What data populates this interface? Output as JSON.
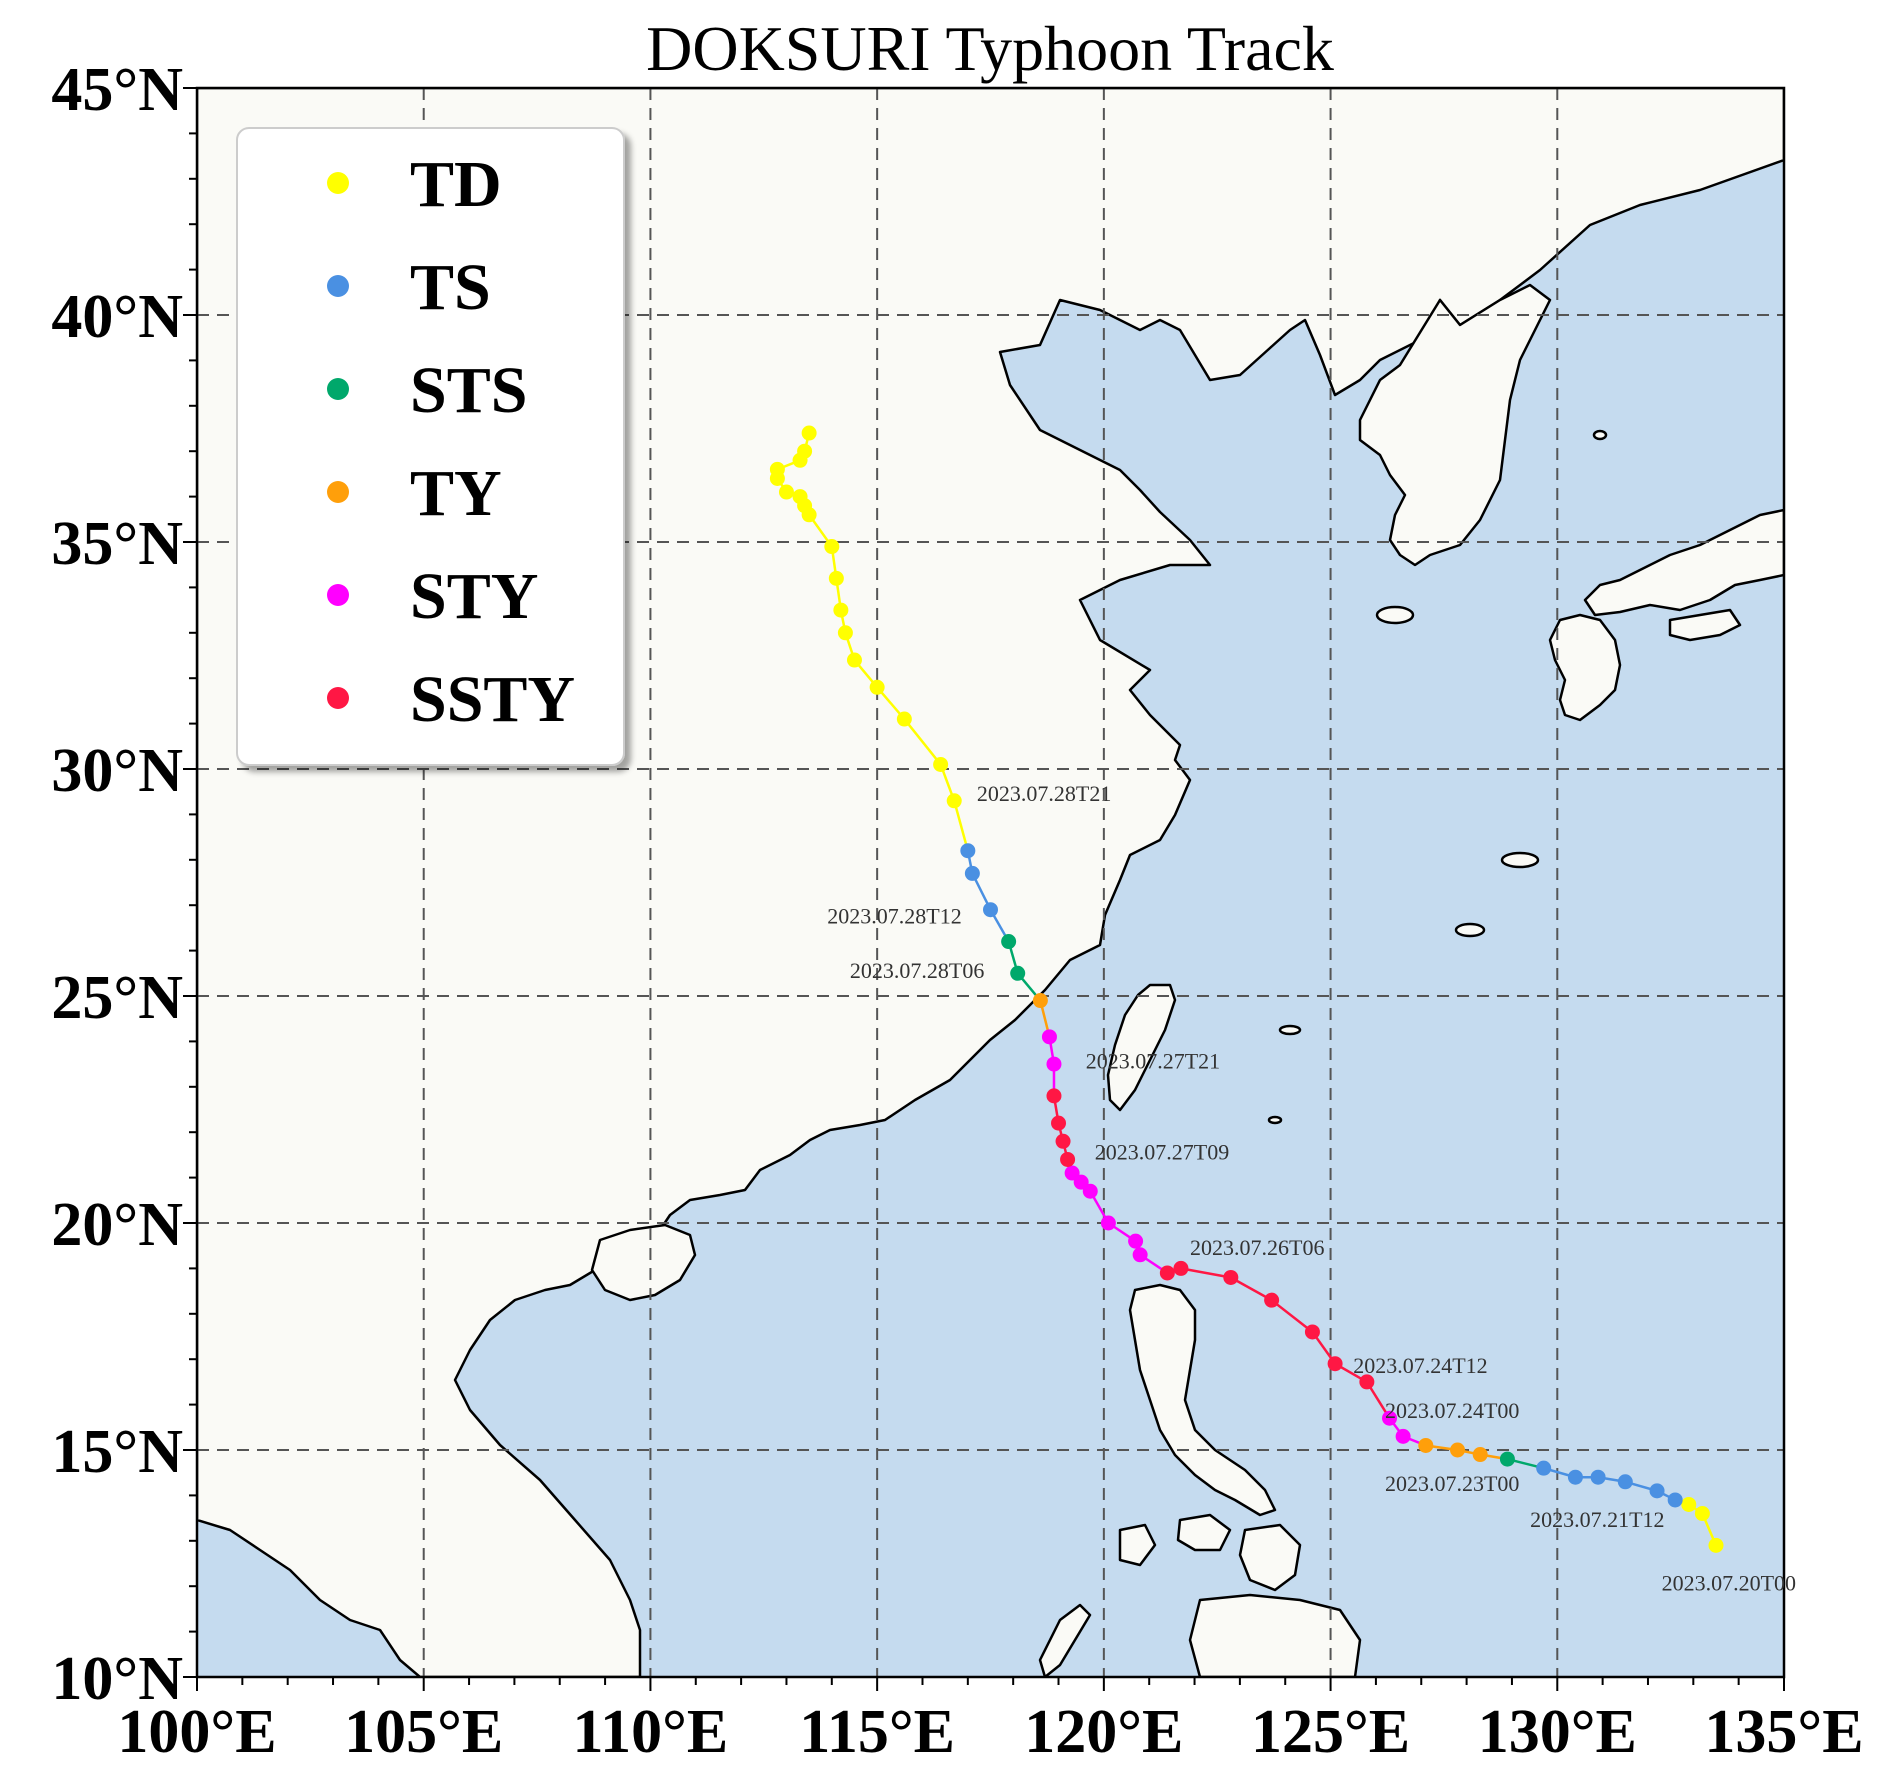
{
  "title": "DOKSURI Typhoon Track",
  "colors": {
    "ocean": "#c5dbef",
    "land": "#fafaf6",
    "TD": "#ffff00",
    "TS": "#4a90e2",
    "STS": "#00a86b",
    "TY": "#ff9f0a",
    "STY": "#ff00ff",
    "SSTY": "#ff1744"
  },
  "legend": [
    {
      "key": "TD",
      "label": "TD"
    },
    {
      "key": "TS",
      "label": "TS"
    },
    {
      "key": "STS",
      "label": "STS"
    },
    {
      "key": "TY",
      "label": "TY"
    },
    {
      "key": "STY",
      "label": "STY"
    },
    {
      "key": "SSTY",
      "label": "SSTY"
    }
  ],
  "axes": {
    "lon_range": [
      100,
      135
    ],
    "lat_range": [
      10,
      45
    ],
    "lon_ticks": [
      {
        "value": 100,
        "label": "100°E"
      },
      {
        "value": 105,
        "label": "105°E"
      },
      {
        "value": 110,
        "label": "110°E"
      },
      {
        "value": 115,
        "label": "115°E"
      },
      {
        "value": 120,
        "label": "120°E"
      },
      {
        "value": 125,
        "label": "125°E"
      },
      {
        "value": 130,
        "label": "130°E"
      },
      {
        "value": 135,
        "label": "135°E"
      }
    ],
    "lat_ticks": [
      {
        "value": 10,
        "label": "10°N"
      },
      {
        "value": 15,
        "label": "15°N"
      },
      {
        "value": 20,
        "label": "20°N"
      },
      {
        "value": 25,
        "label": "25°N"
      },
      {
        "value": 30,
        "label": "30°N"
      },
      {
        "value": 35,
        "label": "35°N"
      },
      {
        "value": 40,
        "label": "40°N"
      },
      {
        "value": 45,
        "label": "45°N"
      }
    ],
    "grid": true
  },
  "track": [
    {
      "lon": 133.5,
      "lat": 12.9,
      "cat": "TD"
    },
    {
      "lon": 133.2,
      "lat": 13.6,
      "cat": "TD"
    },
    {
      "lon": 132.9,
      "lat": 13.8,
      "cat": "TD"
    },
    {
      "lon": 132.6,
      "lat": 13.9,
      "cat": "TS"
    },
    {
      "lon": 132.2,
      "lat": 14.1,
      "cat": "TS"
    },
    {
      "lon": 131.5,
      "lat": 14.3,
      "cat": "TS"
    },
    {
      "lon": 130.9,
      "lat": 14.4,
      "cat": "TS"
    },
    {
      "lon": 130.4,
      "lat": 14.4,
      "cat": "TS"
    },
    {
      "lon": 129.7,
      "lat": 14.6,
      "cat": "TS"
    },
    {
      "lon": 128.9,
      "lat": 14.8,
      "cat": "STS"
    },
    {
      "lon": 128.3,
      "lat": 14.9,
      "cat": "TY"
    },
    {
      "lon": 127.8,
      "lat": 15.0,
      "cat": "TY"
    },
    {
      "lon": 127.1,
      "lat": 15.1,
      "cat": "TY"
    },
    {
      "lon": 126.6,
      "lat": 15.3,
      "cat": "STY"
    },
    {
      "lon": 126.3,
      "lat": 15.7,
      "cat": "STY"
    },
    {
      "lon": 125.8,
      "lat": 16.5,
      "cat": "SSTY"
    },
    {
      "lon": 125.1,
      "lat": 16.9,
      "cat": "SSTY"
    },
    {
      "lon": 124.6,
      "lat": 17.6,
      "cat": "SSTY"
    },
    {
      "lon": 123.7,
      "lat": 18.3,
      "cat": "SSTY"
    },
    {
      "lon": 122.8,
      "lat": 18.8,
      "cat": "SSTY"
    },
    {
      "lon": 121.7,
      "lat": 19.0,
      "cat": "SSTY"
    },
    {
      "lon": 121.4,
      "lat": 18.9,
      "cat": "SSTY"
    },
    {
      "lon": 120.8,
      "lat": 19.3,
      "cat": "STY"
    },
    {
      "lon": 120.7,
      "lat": 19.6,
      "cat": "STY"
    },
    {
      "lon": 120.1,
      "lat": 20.0,
      "cat": "STY"
    },
    {
      "lon": 119.7,
      "lat": 20.7,
      "cat": "STY"
    },
    {
      "lon": 119.5,
      "lat": 20.9,
      "cat": "STY"
    },
    {
      "lon": 119.3,
      "lat": 21.1,
      "cat": "STY"
    },
    {
      "lon": 119.2,
      "lat": 21.4,
      "cat": "SSTY"
    },
    {
      "lon": 119.1,
      "lat": 21.8,
      "cat": "SSTY"
    },
    {
      "lon": 119.0,
      "lat": 22.2,
      "cat": "SSTY"
    },
    {
      "lon": 118.9,
      "lat": 22.8,
      "cat": "SSTY"
    },
    {
      "lon": 118.9,
      "lat": 23.5,
      "cat": "STY"
    },
    {
      "lon": 118.8,
      "lat": 24.1,
      "cat": "STY"
    },
    {
      "lon": 118.6,
      "lat": 24.9,
      "cat": "TY"
    },
    {
      "lon": 118.1,
      "lat": 25.5,
      "cat": "STS"
    },
    {
      "lon": 117.9,
      "lat": 26.2,
      "cat": "STS"
    },
    {
      "lon": 117.5,
      "lat": 26.9,
      "cat": "TS"
    },
    {
      "lon": 117.1,
      "lat": 27.7,
      "cat": "TS"
    },
    {
      "lon": 117.0,
      "lat": 28.2,
      "cat": "TS"
    },
    {
      "lon": 116.7,
      "lat": 29.3,
      "cat": "TD"
    },
    {
      "lon": 116.4,
      "lat": 30.1,
      "cat": "TD"
    },
    {
      "lon": 115.6,
      "lat": 31.1,
      "cat": "TD"
    },
    {
      "lon": 115.0,
      "lat": 31.8,
      "cat": "TD"
    },
    {
      "lon": 114.5,
      "lat": 32.4,
      "cat": "TD"
    },
    {
      "lon": 114.3,
      "lat": 33.0,
      "cat": "TD"
    },
    {
      "lon": 114.2,
      "lat": 33.5,
      "cat": "TD"
    },
    {
      "lon": 114.1,
      "lat": 34.2,
      "cat": "TD"
    },
    {
      "lon": 114.0,
      "lat": 34.9,
      "cat": "TD"
    },
    {
      "lon": 113.5,
      "lat": 35.6,
      "cat": "TD"
    },
    {
      "lon": 113.4,
      "lat": 35.8,
      "cat": "TD"
    },
    {
      "lon": 113.3,
      "lat": 36.0,
      "cat": "TD"
    },
    {
      "lon": 113.0,
      "lat": 36.1,
      "cat": "TD"
    },
    {
      "lon": 112.8,
      "lat": 36.4,
      "cat": "TD"
    },
    {
      "lon": 112.8,
      "lat": 36.6,
      "cat": "TD"
    },
    {
      "lon": 113.3,
      "lat": 36.8,
      "cat": "TD"
    },
    {
      "lon": 113.4,
      "lat": 37.0,
      "cat": "TD"
    },
    {
      "lon": 113.5,
      "lat": 37.4,
      "cat": "TD"
    }
  ],
  "time_labels": [
    {
      "text": "2023.07.20T00",
      "lon": 132.3,
      "lat": 11.9
    },
    {
      "text": "2023.07.21T12",
      "lon": 129.4,
      "lat": 13.3
    },
    {
      "text": "2023.07.23T00",
      "lon": 126.2,
      "lat": 14.1
    },
    {
      "text": "2023.07.24T00",
      "lon": 126.2,
      "lat": 15.7
    },
    {
      "text": "2023.07.24T12",
      "lon": 125.5,
      "lat": 16.7
    },
    {
      "text": "2023.07.26T06",
      "lon": 121.9,
      "lat": 19.3
    },
    {
      "text": "2023.07.27T09",
      "lon": 119.8,
      "lat": 21.4
    },
    {
      "text": "2023.07.27T21",
      "lon": 119.6,
      "lat": 23.4
    },
    {
      "text": "2023.07.28T06",
      "lon": 114.4,
      "lat": 25.4
    },
    {
      "text": "2023.07.28T12",
      "lon": 113.9,
      "lat": 26.6
    },
    {
      "text": "2023.07.28T21",
      "lon": 117.2,
      "lat": 29.3
    }
  ]
}
